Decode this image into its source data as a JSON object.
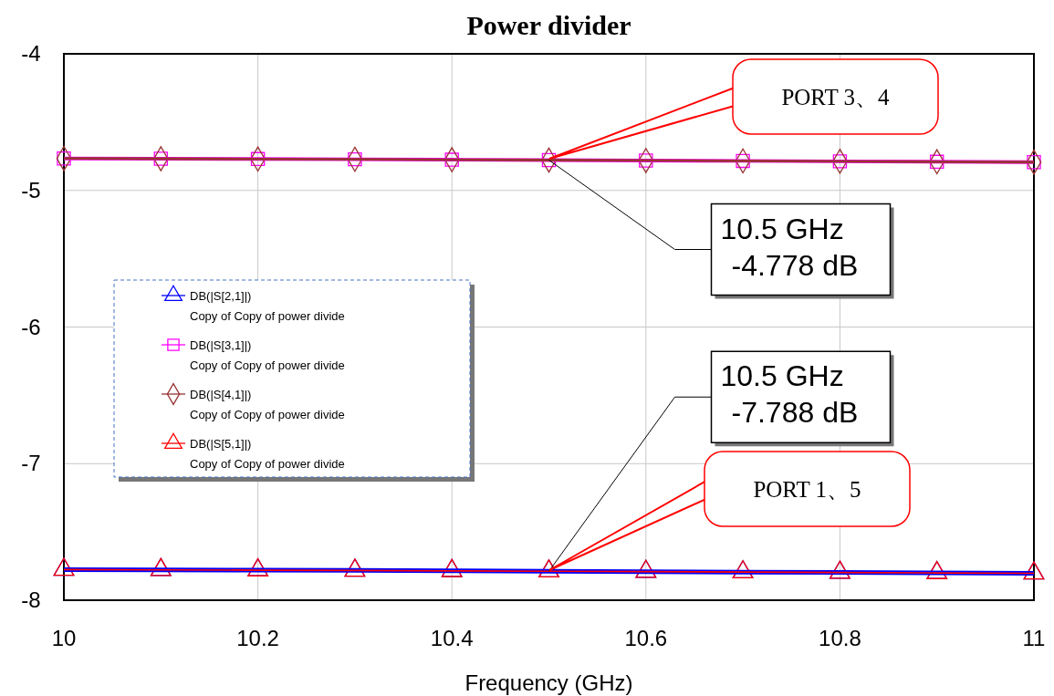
{
  "chart_data": {
    "type": "line",
    "title": "Power divider",
    "xlabel": "Frequency (GHz)",
    "x": [
      10,
      10.1,
      10.2,
      10.3,
      10.4,
      10.5,
      10.6,
      10.7,
      10.8,
      10.9,
      11
    ],
    "series": [
      {
        "name": "DB(|S[2,1]|)\nCopy of Copy of power divide",
        "color": "#0000ff",
        "marker": "triangle",
        "values": [
          -7.776,
          -7.778,
          -7.78,
          -7.782,
          -7.785,
          -7.788,
          -7.791,
          -7.794,
          -7.797,
          -7.8,
          -7.803
        ]
      },
      {
        "name": "DB(|S[3,1]|)\nCopy of Copy of power divide",
        "color": "#ff00ff",
        "marker": "square",
        "values": [
          -4.766,
          -4.768,
          -4.77,
          -4.772,
          -4.775,
          -4.778,
          -4.781,
          -4.784,
          -4.787,
          -4.79,
          -4.793
        ]
      },
      {
        "name": "DB(|S[4,1]|)\nCopy of Copy of power divide",
        "color": "#993333",
        "marker": "diamond",
        "values": [
          -4.766,
          -4.768,
          -4.77,
          -4.772,
          -4.775,
          -4.778,
          -4.781,
          -4.784,
          -4.787,
          -4.79,
          -4.793
        ]
      },
      {
        "name": "DB(|S[5,1]|)\nCopy of Copy of power divide",
        "color": "#ff0000",
        "marker": "triangle",
        "values": [
          -7.776,
          -7.778,
          -7.78,
          -7.782,
          -7.785,
          -7.788,
          -7.791,
          -7.794,
          -7.797,
          -7.8,
          -7.803
        ]
      }
    ],
    "xlim": [
      10,
      11
    ],
    "xticks": [
      10,
      10.2,
      10.4,
      10.6,
      10.8,
      11
    ],
    "ylim": [
      -8,
      -4
    ],
    "yticks": [
      -8,
      -7,
      -6,
      -5,
      -4
    ],
    "grid": true,
    "legend": "left",
    "line_style": "solid",
    "annotations": [
      "PORT 3、4",
      {
        "text": "10.5 GHz\n-4.778 dB",
        "x": 10.5,
        "y": -4.778
      },
      {
        "text": "10.5 GHz\n-7.788 dB",
        "x": 10.5,
        "y": -7.788
      },
      "PORT 1、5"
    ]
  }
}
